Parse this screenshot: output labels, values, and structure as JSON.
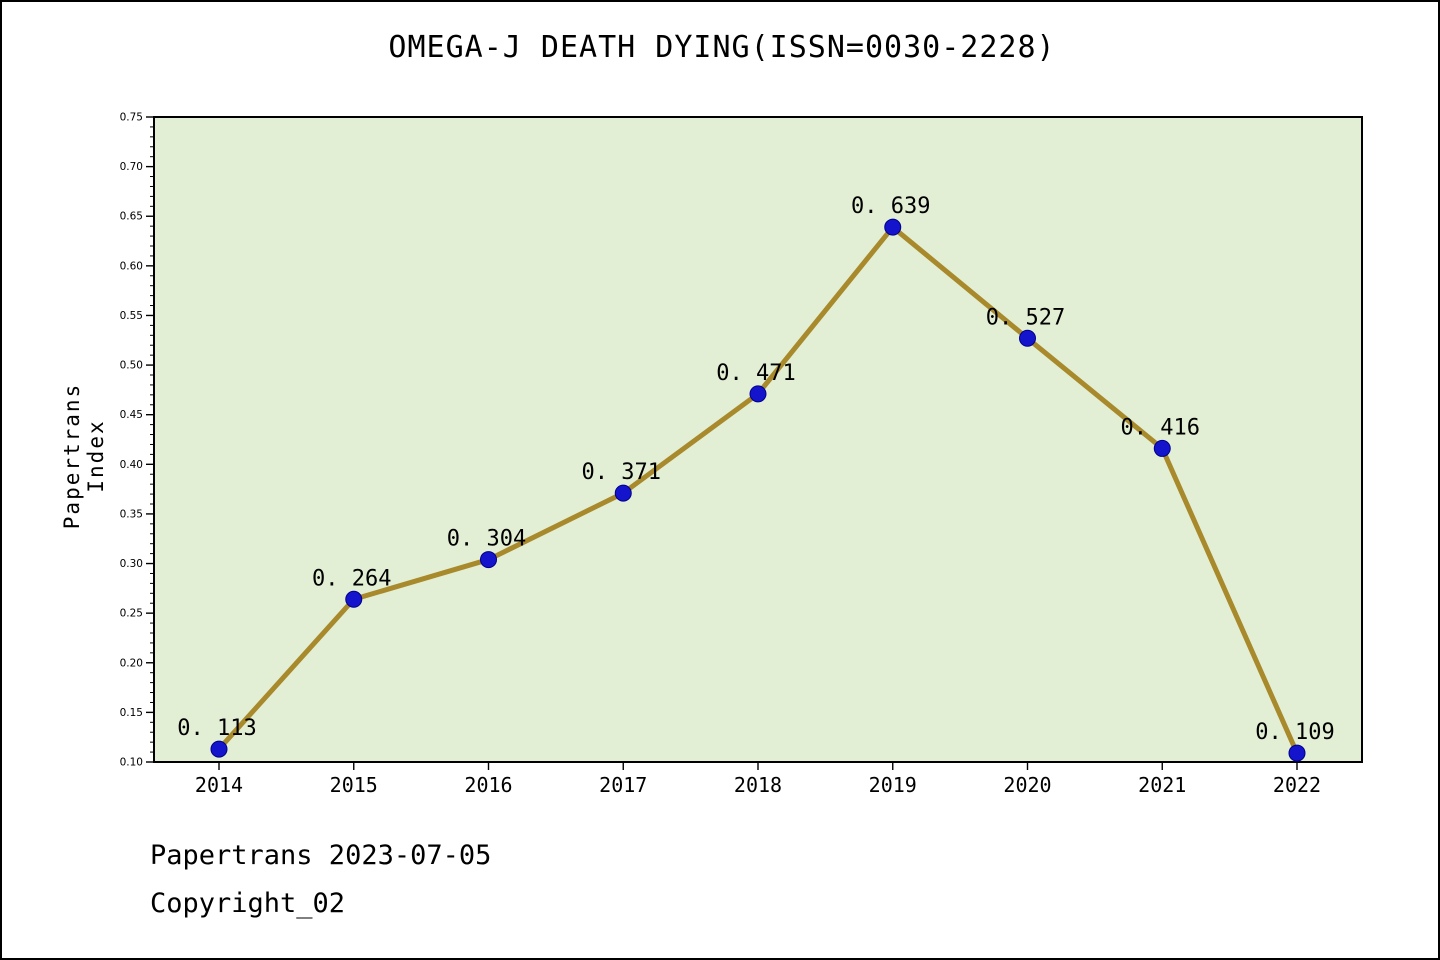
{
  "title": "OMEGA-J DEATH DYING(ISSN=0030-2228)",
  "footer": {
    "line1": "Papertrans 2023-07-05",
    "line2": "Copyright_02"
  },
  "chart_data": {
    "type": "line",
    "title": "OMEGA-J DEATH DYING(ISSN=0030-2228)",
    "xlabel": "",
    "ylabel": "Papertrans Index",
    "categories": [
      "2014",
      "2015",
      "2016",
      "2017",
      "2018",
      "2019",
      "2020",
      "2021",
      "2022"
    ],
    "values": [
      0.113,
      0.264,
      0.304,
      0.371,
      0.471,
      0.639,
      0.527,
      0.416,
      0.109
    ],
    "point_labels": [
      "0. 113",
      "0. 264",
      "0. 304",
      "0. 371",
      "0. 471",
      "0. 639",
      "0. 527",
      "0. 416",
      "0. 109"
    ],
    "ylim": [
      0.1,
      0.75
    ],
    "ytick_step": 0.05,
    "ytick_minor_step": 0.01,
    "grid": false,
    "legend": "none",
    "colors": {
      "line": "#a8892b",
      "marker_fill": "#1414cc",
      "marker_edge": "#00008b",
      "plot_bg": "#e3efd4",
      "page_bg": "#ffffff",
      "axis": "#000000",
      "text": "#000000"
    }
  }
}
